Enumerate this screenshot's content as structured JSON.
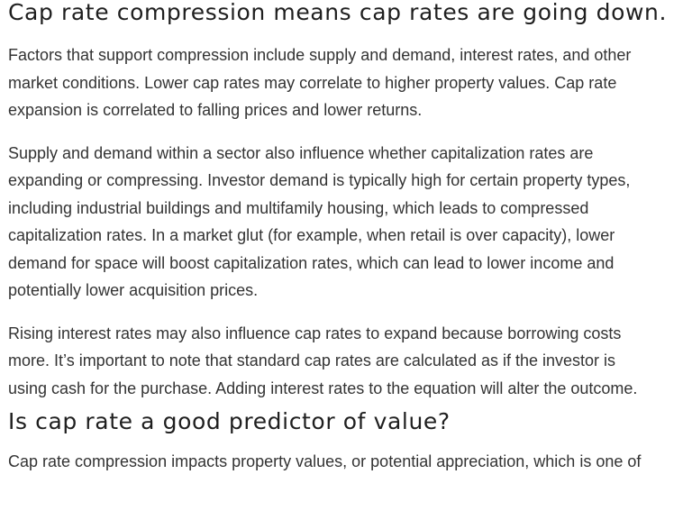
{
  "section1": {
    "heading": "Cap rate compression means cap rates are going down.",
    "paragraphs": [
      [
        "Factors that support compression include supply and demand, interest rates, and other",
        "market conditions. Lower cap rates may correlate to higher property values. Cap rate",
        "expansion is correlated to falling prices and lower returns."
      ],
      [
        "Supply and demand within a sector also influence whether capitalization rates are",
        "expanding or compressing. Investor demand is typically high for certain property types,",
        "including industrial buildings and multifamily housing, which leads to compressed",
        "capitalization rates. In a market glut (for example, when retail is over capacity), lower",
        "demand for space will boost capitalization rates, which can lead to lower income and",
        "potentially lower acquisition prices."
      ],
      [
        "Rising interest rates may also influence cap rates to expand because borrowing costs",
        "more. It’s important to note that standard cap rates are calculated as if the investor is",
        "using cash for the purchase. Adding interest rates to the equation will alter the outcome."
      ]
    ]
  },
  "section2": {
    "heading": "Is cap rate a good predictor of value?",
    "paragraphs": [
      [
        "Cap rate compression impacts property values, or potential appreciation, which is one of"
      ]
    ]
  }
}
